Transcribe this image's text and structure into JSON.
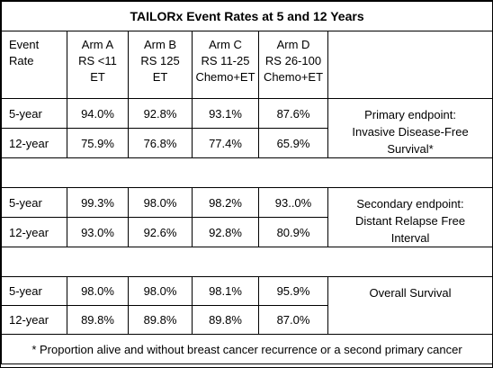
{
  "title": "TAILORx Event Rates at 5 and 12 Years",
  "header": {
    "row_label_lines": [
      "Event",
      "Rate"
    ],
    "arms": [
      {
        "lines": [
          "Arm A",
          "RS <11",
          "ET"
        ]
      },
      {
        "lines": [
          "Arm B",
          "RS 125",
          "ET"
        ]
      },
      {
        "lines": [
          "Arm C",
          "RS 11-25",
          "Chemo+ET"
        ]
      },
      {
        "lines": [
          "Arm D",
          "RS 26-100",
          "Chemo+ET"
        ]
      }
    ]
  },
  "sections": [
    {
      "endpoint_lines": [
        "Primary endpoint:",
        "Invasive Disease-Free",
        "Survival*"
      ],
      "rows": [
        {
          "label": "5-year",
          "values": [
            "94.0%",
            "92.8%",
            "93.1%",
            "87.6%"
          ]
        },
        {
          "label": "12-year",
          "values": [
            "75.9%",
            "76.8%",
            "77.4%",
            "65.9%"
          ]
        }
      ]
    },
    {
      "endpoint_lines": [
        "Secondary endpoint:",
        "Distant Relapse Free",
        "Interval"
      ],
      "rows": [
        {
          "label": "5-year",
          "values": [
            "99.3%",
            "98.0%",
            "98.2%",
            "93..0%"
          ]
        },
        {
          "label": "12-year",
          "values": [
            "93.0%",
            "92.6%",
            "92.8%",
            "80.9%"
          ]
        }
      ]
    },
    {
      "endpoint_lines": [
        "Overall Survival"
      ],
      "rows": [
        {
          "label": "5-year",
          "values": [
            "98.0%",
            "98.0%",
            "98.1%",
            "95.9%"
          ]
        },
        {
          "label": "12-year",
          "values": [
            "89.8%",
            "89.8%",
            "89.8%",
            "87.0%"
          ]
        }
      ]
    }
  ],
  "footnote": "* Proportion alive and without breast cancer recurrence or a second primary cancer"
}
